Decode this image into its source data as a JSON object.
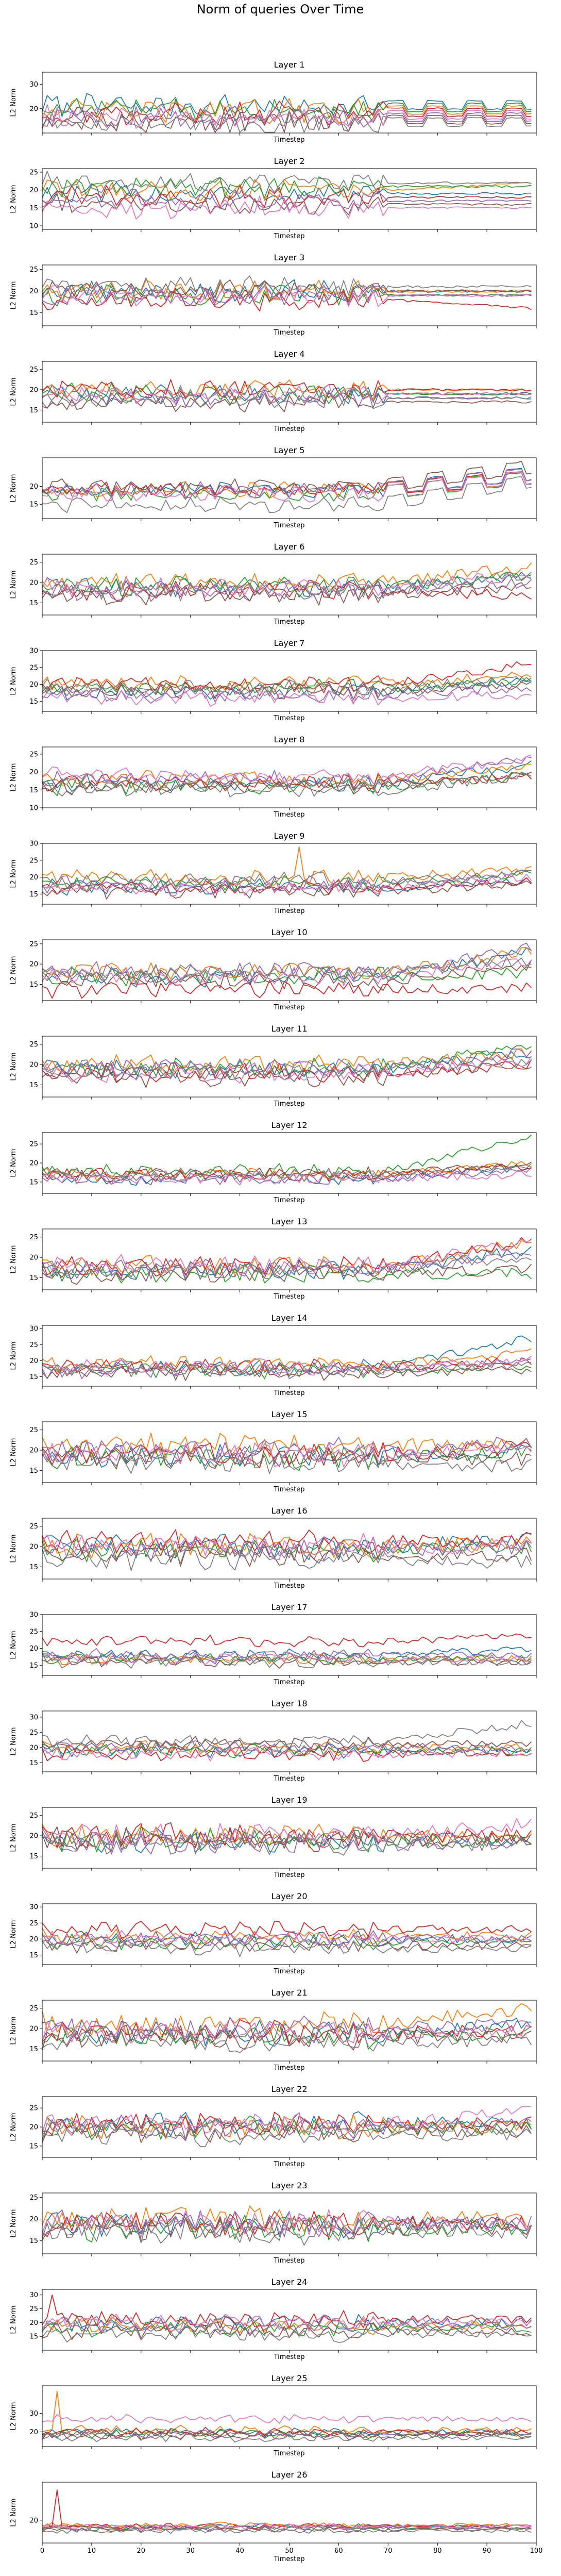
{
  "figure": {
    "title": "Norm of queries Over Time",
    "xlabel": "Timestep",
    "ylabel": "L2 Norm",
    "xticks": [
      0,
      10,
      20,
      30,
      40,
      50,
      60,
      70,
      80,
      90,
      100
    ],
    "series_colors": [
      "#1f77b4",
      "#ff7f0e",
      "#2ca02c",
      "#d62728",
      "#9467bd",
      "#8c564b",
      "#e377c2",
      "#7f7f7f"
    ]
  },
  "chart_data": [
    {
      "type": "line",
      "title": "Layer 1",
      "xlabel": "Timestep",
      "ylabel": "L2 Norm",
      "xlim": [
        0,
        100
      ],
      "ylim": [
        10,
        35
      ],
      "yticks": [
        20,
        30
      ],
      "baselines": [
        21,
        19,
        20,
        18,
        16,
        15,
        17,
        14
      ],
      "amplitude": 4.0,
      "trends": [
        0,
        0,
        0,
        0,
        0,
        0,
        0,
        0
      ],
      "late_pattern": "periodic",
      "spikes": []
    },
    {
      "type": "line",
      "title": "Layer 2",
      "xlabel": "Timestep",
      "ylabel": "L2 Norm",
      "xlim": [
        0,
        100
      ],
      "ylim": [
        9,
        26
      ],
      "yticks": [
        10,
        15,
        20,
        25
      ],
      "baselines": [
        19,
        20,
        21,
        18,
        17,
        16,
        15,
        22
      ],
      "amplitude": 2.5,
      "trends": [
        0,
        2,
        0,
        0,
        0,
        0,
        0,
        0
      ],
      "late_pattern": "flat",
      "spikes": []
    },
    {
      "type": "line",
      "title": "Layer 3",
      "xlabel": "Timestep",
      "ylabel": "L2 Norm",
      "xlim": [
        0,
        100
      ],
      "ylim": [
        12,
        26
      ],
      "yticks": [
        15,
        20,
        25
      ],
      "baselines": [
        20,
        20,
        19,
        18,
        19,
        20,
        19,
        21
      ],
      "amplitude": 2.0,
      "trends": [
        0,
        0,
        0,
        -2,
        0,
        0,
        0,
        0
      ],
      "late_pattern": "flat",
      "spikes": []
    },
    {
      "type": "line",
      "title": "Layer 4",
      "xlabel": "Timestep",
      "ylabel": "L2 Norm",
      "xlim": [
        0,
        100
      ],
      "ylim": [
        12,
        27
      ],
      "yticks": [
        15,
        20,
        25
      ],
      "baselines": [
        19,
        20,
        19,
        20,
        18,
        17,
        19,
        18
      ],
      "amplitude": 2.0,
      "trends": [
        0,
        0,
        0,
        0,
        0,
        0,
        0,
        0
      ],
      "late_pattern": "flat",
      "spikes": []
    },
    {
      "type": "line",
      "title": "Layer 5",
      "xlabel": "Timestep",
      "ylabel": "L2 Norm",
      "xlim": [
        0,
        100
      ],
      "ylim": [
        11,
        28
      ],
      "yticks": [
        15,
        20
      ],
      "baselines": [
        19,
        19,
        18,
        19,
        19,
        20,
        18,
        15
      ],
      "amplitude": 1.8,
      "trends": [
        4,
        3,
        4,
        3,
        4,
        5,
        4,
        6
      ],
      "late_pattern": "periodic",
      "spikes": []
    },
    {
      "type": "line",
      "title": "Layer 6",
      "xlabel": "Timestep",
      "ylabel": "L2 Norm",
      "xlim": [
        0,
        100
      ],
      "ylim": [
        12,
        27
      ],
      "yticks": [
        15,
        20,
        25
      ],
      "baselines": [
        19,
        20,
        19,
        18,
        18,
        17,
        19,
        18
      ],
      "amplitude": 2.0,
      "trends": [
        3,
        4,
        3,
        -1,
        2,
        2,
        3,
        4
      ],
      "late_pattern": "noise",
      "spikes": []
    },
    {
      "type": "line",
      "title": "Layer 7",
      "xlabel": "Timestep",
      "ylabel": "L2 Norm",
      "xlim": [
        0,
        100
      ],
      "ylim": [
        12,
        30
      ],
      "yticks": [
        15,
        20,
        25,
        30
      ],
      "baselines": [
        18,
        20,
        19,
        20,
        17,
        18,
        16,
        19
      ],
      "amplitude": 2.0,
      "trends": [
        3,
        3,
        2,
        6,
        2,
        2,
        1,
        3
      ],
      "late_pattern": "noise",
      "spikes": []
    },
    {
      "type": "line",
      "title": "Layer 8",
      "xlabel": "Timestep",
      "ylabel": "L2 Norm",
      "xlim": [
        0,
        100
      ],
      "ylim": [
        10,
        27
      ],
      "yticks": [
        10,
        15,
        20,
        25
      ],
      "baselines": [
        17,
        18,
        16,
        17,
        18,
        16,
        19,
        15
      ],
      "amplitude": 2.0,
      "trends": [
        5,
        4,
        3,
        2,
        6,
        3,
        5,
        4
      ],
      "late_pattern": "noise",
      "spikes": []
    },
    {
      "type": "line",
      "title": "Layer 9",
      "xlabel": "Timestep",
      "ylabel": "L2 Norm",
      "xlim": [
        0,
        100
      ],
      "ylim": [
        12,
        30
      ],
      "yticks": [
        15,
        20,
        25,
        30
      ],
      "baselines": [
        17,
        20,
        18,
        17,
        18,
        16,
        17,
        19
      ],
      "amplitude": 2.0,
      "trends": [
        2,
        2,
        3,
        2,
        3,
        2,
        3,
        2
      ],
      "late_pattern": "noise",
      "spikes": [
        [
          52,
          29,
          1
        ]
      ]
    },
    {
      "type": "line",
      "title": "Layer 10",
      "xlabel": "Timestep",
      "ylabel": "L2 Norm",
      "xlim": [
        0,
        100
      ],
      "ylim": [
        11,
        26
      ],
      "yticks": [
        15,
        20,
        25
      ],
      "baselines": [
        17,
        18,
        17,
        14,
        18,
        16,
        17,
        18
      ],
      "amplitude": 2.0,
      "trends": [
        6,
        5,
        1,
        0,
        6,
        4,
        4,
        3
      ],
      "late_pattern": "noise",
      "spikes": []
    },
    {
      "type": "line",
      "title": "Layer 11",
      "xlabel": "Timestep",
      "ylabel": "L2 Norm",
      "xlim": [
        0,
        100
      ],
      "ylim": [
        12,
        27
      ],
      "yticks": [
        15,
        20,
        25
      ],
      "baselines": [
        19,
        20,
        19,
        18,
        19,
        17,
        18,
        19
      ],
      "amplitude": 2.0,
      "trends": [
        4,
        3,
        6,
        2,
        4,
        3,
        3,
        2
      ],
      "late_pattern": "noise",
      "spikes": []
    },
    {
      "type": "line",
      "title": "Layer 12",
      "xlabel": "Timestep",
      "ylabel": "L2 Norm",
      "xlim": [
        0,
        100
      ],
      "ylim": [
        12,
        28
      ],
      "yticks": [
        15,
        20,
        25
      ],
      "baselines": [
        16,
        17,
        18,
        17,
        16,
        17,
        16,
        17
      ],
      "amplitude": 1.5,
      "trends": [
        3,
        3,
        9,
        2,
        2,
        3,
        1,
        2
      ],
      "late_pattern": "noise",
      "spikes": []
    },
    {
      "type": "line",
      "title": "Layer 13",
      "xlabel": "Timestep",
      "ylabel": "L2 Norm",
      "xlim": [
        0,
        100
      ],
      "ylim": [
        12,
        27
      ],
      "yticks": [
        15,
        20,
        25
      ],
      "baselines": [
        17,
        18,
        16,
        18,
        17,
        16,
        18,
        17
      ],
      "amplitude": 2.0,
      "trends": [
        5,
        6,
        0,
        6,
        4,
        1,
        6,
        3
      ],
      "late_pattern": "noise",
      "spikes": []
    },
    {
      "type": "line",
      "title": "Layer 14",
      "xlabel": "Timestep",
      "ylabel": "L2 Norm",
      "xlim": [
        0,
        100
      ],
      "ylim": [
        12,
        31
      ],
      "yticks": [
        15,
        20,
        25,
        30
      ],
      "baselines": [
        18,
        19,
        17,
        18,
        17,
        16,
        18,
        17
      ],
      "amplitude": 2.0,
      "trends": [
        9,
        4,
        1,
        2,
        3,
        1,
        2,
        2
      ],
      "late_pattern": "noise",
      "spikes": []
    },
    {
      "type": "line",
      "title": "Layer 15",
      "xlabel": "Timestep",
      "ylabel": "L2 Norm",
      "xlim": [
        0,
        100
      ],
      "ylim": [
        12,
        27
      ],
      "yticks": [
        15,
        20,
        25
      ],
      "baselines": [
        19,
        21,
        18,
        19,
        20,
        18,
        19,
        17
      ],
      "amplitude": 2.5,
      "trends": [
        1,
        1,
        2,
        2,
        2,
        0,
        1,
        -1
      ],
      "late_pattern": "noise",
      "spikes": []
    },
    {
      "type": "line",
      "title": "Layer 16",
      "xlabel": "Timestep",
      "ylabel": "L2 Norm",
      "xlim": [
        0,
        100
      ],
      "ylim": [
        12,
        27
      ],
      "yticks": [
        15,
        20,
        25
      ],
      "baselines": [
        20,
        20,
        19,
        21,
        19,
        18,
        20,
        17
      ],
      "amplitude": 2.5,
      "trends": [
        2,
        1,
        1,
        1,
        1,
        0,
        0,
        -1
      ],
      "late_pattern": "noise",
      "spikes": []
    },
    {
      "type": "line",
      "title": "Layer 17",
      "xlabel": "Timestep",
      "ylabel": "L2 Norm",
      "xlim": [
        0,
        100
      ],
      "ylim": [
        12,
        30
      ],
      "yticks": [
        15,
        20,
        25,
        30
      ],
      "baselines": [
        18,
        17,
        17,
        22,
        18,
        16,
        17,
        16
      ],
      "amplitude": 1.5,
      "trends": [
        2,
        0,
        0,
        2,
        0,
        0,
        0,
        0
      ],
      "late_pattern": "noise",
      "spikes": []
    },
    {
      "type": "line",
      "title": "Layer 18",
      "xlabel": "Timestep",
      "ylabel": "L2 Norm",
      "xlim": [
        0,
        100
      ],
      "ylim": [
        12,
        32
      ],
      "yticks": [
        15,
        20,
        25,
        30
      ],
      "baselines": [
        19,
        20,
        19,
        18,
        20,
        21,
        18,
        22
      ],
      "amplitude": 2.0,
      "trends": [
        0,
        0,
        0,
        0,
        0,
        0,
        0,
        6
      ],
      "late_pattern": "noise",
      "spikes": []
    },
    {
      "type": "line",
      "title": "Layer 19",
      "xlabel": "Timestep",
      "ylabel": "L2 Norm",
      "xlim": [
        0,
        100
      ],
      "ylim": [
        12,
        27
      ],
      "yticks": [
        15,
        20,
        25
      ],
      "baselines": [
        19,
        20,
        19,
        20,
        18,
        19,
        20,
        18
      ],
      "amplitude": 2.5,
      "trends": [
        0,
        0,
        0,
        0,
        0,
        0,
        3,
        0
      ],
      "late_pattern": "noise",
      "spikes": []
    },
    {
      "type": "line",
      "title": "Layer 20",
      "xlabel": "Timestep",
      "ylabel": "L2 Norm",
      "xlim": [
        0,
        100
      ],
      "ylim": [
        12,
        31
      ],
      "yticks": [
        15,
        20,
        25,
        30
      ],
      "baselines": [
        20,
        21,
        19,
        23,
        20,
        18,
        20,
        17
      ],
      "amplitude": 2.0,
      "trends": [
        0,
        0,
        0,
        0,
        0,
        0,
        0,
        0
      ],
      "late_pattern": "noise",
      "spikes": []
    },
    {
      "type": "line",
      "title": "Layer 21",
      "xlabel": "Timestep",
      "ylabel": "L2 Norm",
      "xlim": [
        0,
        100
      ],
      "ylim": [
        12,
        27
      ],
      "yticks": [
        15,
        20,
        25
      ],
      "baselines": [
        19,
        21,
        18,
        19,
        20,
        18,
        19,
        17
      ],
      "amplitude": 2.5,
      "trends": [
        2,
        4,
        1,
        1,
        1,
        0,
        1,
        0
      ],
      "late_pattern": "noise",
      "spikes": []
    },
    {
      "type": "line",
      "title": "Layer 22",
      "xlabel": "Timestep",
      "ylabel": "L2 Norm",
      "xlim": [
        0,
        100
      ],
      "ylim": [
        12,
        28
      ],
      "yticks": [
        15,
        20,
        25
      ],
      "baselines": [
        21,
        20,
        20,
        21,
        20,
        19,
        21,
        18
      ],
      "amplitude": 2.5,
      "trends": [
        0,
        0,
        0,
        0,
        1,
        0,
        3,
        0
      ],
      "late_pattern": "noise",
      "spikes": []
    },
    {
      "type": "line",
      "title": "Layer 23",
      "xlabel": "Timestep",
      "ylabel": "L2 Norm",
      "xlim": [
        0,
        100
      ],
      "ylim": [
        12,
        26
      ],
      "yticks": [
        15,
        20,
        25
      ],
      "baselines": [
        19,
        20,
        18,
        19,
        19,
        18,
        19,
        17
      ],
      "amplitude": 2.5,
      "trends": [
        0,
        0,
        0,
        0,
        0,
        0,
        0,
        0
      ],
      "late_pattern": "noise",
      "spikes": []
    },
    {
      "type": "line",
      "title": "Layer 24",
      "xlabel": "Timestep",
      "ylabel": "L2 Norm",
      "xlim": [
        0,
        100
      ],
      "ylim": [
        10,
        32
      ],
      "yticks": [
        15,
        20,
        25,
        30
      ],
      "baselines": [
        20,
        19,
        18,
        21,
        19,
        17,
        20,
        16
      ],
      "amplitude": 2.5,
      "trends": [
        0,
        0,
        0,
        0,
        0,
        0,
        0,
        0
      ],
      "late_pattern": "noise",
      "spikes": [
        [
          2,
          30,
          3
        ]
      ]
    },
    {
      "type": "line",
      "title": "Layer 25",
      "xlabel": "Timestep",
      "ylabel": "L2 Norm",
      "xlim": [
        0,
        100
      ],
      "ylim": [
        12,
        45
      ],
      "yticks": [
        20,
        30
      ],
      "baselines": [
        20,
        21,
        19,
        20,
        19,
        18,
        27,
        17
      ],
      "amplitude": 2.0,
      "trends": [
        0,
        0,
        0,
        0,
        0,
        0,
        0,
        0
      ],
      "late_pattern": "noise",
      "spikes": [
        [
          3,
          42,
          1
        ]
      ]
    },
    {
      "type": "line",
      "title": "Layer 26",
      "xlabel": "Timestep",
      "ylabel": "L2 Norm",
      "xlim": [
        0,
        100
      ],
      "ylim": [
        5,
        45
      ],
      "yticks": [
        20
      ],
      "baselines": [
        16,
        17,
        15,
        16,
        15,
        14,
        16,
        13
      ],
      "amplitude": 1.5,
      "trends": [
        0,
        0,
        0,
        0,
        0,
        0,
        0,
        0
      ],
      "late_pattern": "noise",
      "spikes": [
        [
          3,
          40,
          3
        ]
      ]
    }
  ]
}
